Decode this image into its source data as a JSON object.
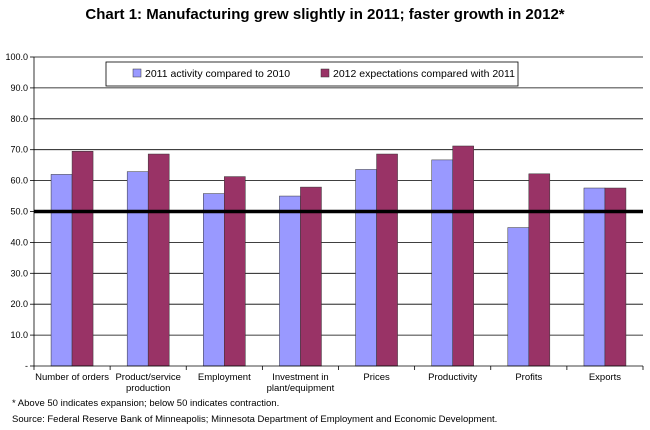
{
  "chart_data": {
    "type": "bar",
    "title": "Chart 1: Manufacturing  grew slightly in 2011; faster growth in 2012*",
    "categories": [
      [
        "Number of orders"
      ],
      [
        "Product/service",
        "production"
      ],
      [
        "Employment"
      ],
      [
        "Investment in",
        "plant/equipment"
      ],
      [
        "Prices"
      ],
      [
        "Productivity"
      ],
      [
        "Profits"
      ],
      [
        "Exports"
      ]
    ],
    "series": [
      {
        "name": "2011 activity compared to 2010",
        "color": "#9999ff",
        "values": [
          62.0,
          62.9,
          55.8,
          55.0,
          63.6,
          66.7,
          44.8,
          57.6
        ]
      },
      {
        "name": "2012 expectations compared with 2011",
        "color": "#993366",
        "values": [
          69.5,
          68.6,
          61.3,
          57.9,
          68.6,
          71.2,
          62.2,
          57.6
        ]
      }
    ],
    "ylim": [
      0,
      100
    ],
    "yticks": [
      "-",
      "10.0",
      "20.0",
      "30.0",
      "40.0",
      "50.0",
      "60.0",
      "70.0",
      "80.0",
      "90.0",
      "100.0"
    ],
    "reference_line": 50,
    "grid": true,
    "legend_position": "top",
    "notes": [
      "* Above 50 indicates expansion; below 50 indicates contraction.",
      "Source: Federal Reserve Bank of Minneapolis; Minnesota Department of Employment and Economic Development."
    ]
  }
}
